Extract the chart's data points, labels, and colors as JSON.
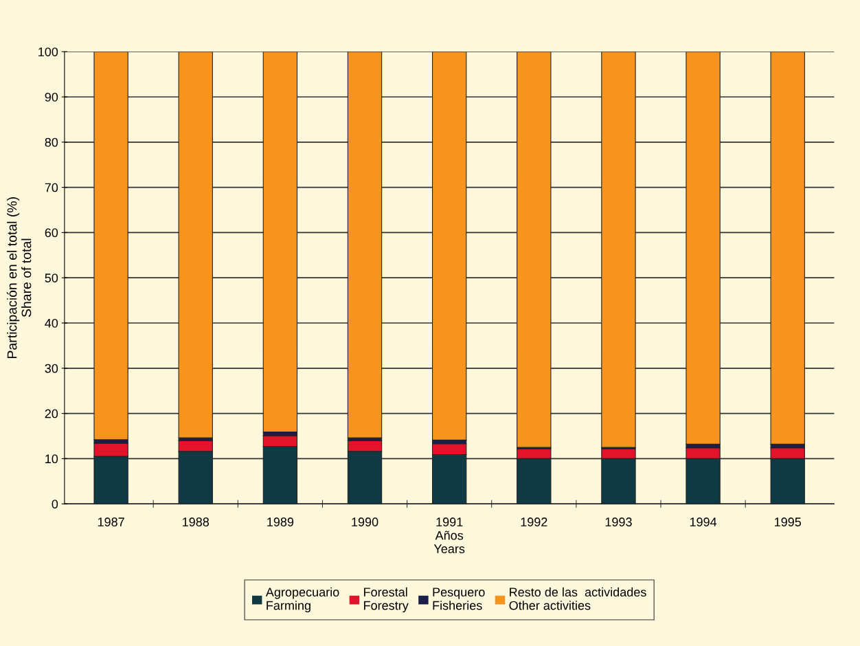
{
  "chart_data": {
    "type": "bar",
    "stacked": true,
    "xlabel": "Años\nYears",
    "ylabel": "Participación en el total (%)\nShare of total",
    "categories": [
      "1987",
      "1988",
      "1989",
      "1990",
      "1991",
      "1992",
      "1993",
      "1994",
      "1995"
    ],
    "series": [
      {
        "name": "Agropecuario\nFarming",
        "color": "#0f3a44",
        "values": [
          10.5,
          11.6,
          12.7,
          11.6,
          10.9,
          10.0,
          10.0,
          10.0,
          10.0
        ]
      },
      {
        "name": "Forestal\nForestry",
        "color": "#e3132c",
        "values": [
          2.9,
          2.4,
          2.4,
          2.4,
          2.4,
          2.2,
          2.2,
          2.4,
          2.4
        ]
      },
      {
        "name": "Pesquero\nFisheries",
        "color": "#1a1f4a",
        "values": [
          0.8,
          0.6,
          0.8,
          0.6,
          0.8,
          0.3,
          0.3,
          0.8,
          0.8
        ]
      },
      {
        "name": "Resto de las  actividades\nOther activities",
        "color": "#f7941d",
        "values": [
          85.8,
          85.4,
          84.1,
          85.4,
          85.9,
          87.5,
          87.5,
          86.8,
          86.8
        ]
      }
    ],
    "ylim": [
      0,
      100
    ],
    "yticks": [
      0,
      10,
      20,
      30,
      40,
      50,
      60,
      70,
      80,
      90,
      100
    ],
    "grid": "y",
    "legend": "bottom"
  }
}
